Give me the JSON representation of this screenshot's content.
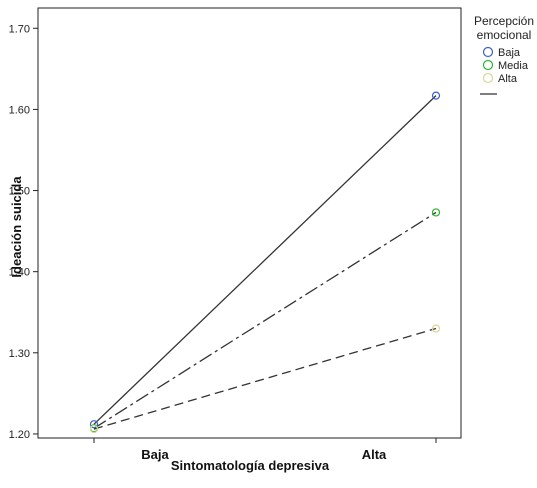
{
  "chart_data": {
    "type": "line",
    "xlabel": "Sintomatología depresiva",
    "ylabel": "Ideación suicida",
    "categories": [
      "Baja",
      "Alta"
    ],
    "ylim": [
      1.195,
      1.725
    ],
    "yticks": [
      "1.20",
      "1.30",
      "1.40",
      "1.50",
      "1.60",
      "1.70"
    ],
    "grid": false,
    "legend_title_lines": [
      "Percepción",
      "emocional"
    ],
    "legend_position": "top-right",
    "legend_items": [
      "Baja",
      "Media",
      "Alta"
    ],
    "legend_markers": [
      "circle",
      "circle",
      "circle",
      "line"
    ],
    "series": [
      {
        "name": "Baja",
        "values": [
          1.212,
          1.617
        ],
        "marker_color": "#3a5fcd",
        "dash": "solid"
      },
      {
        "name": "Media",
        "values": [
          1.207,
          1.473
        ],
        "marker_color": "#2db52d",
        "dash": "dashdot"
      },
      {
        "name": "Alta",
        "values": [
          1.206,
          1.33
        ],
        "marker_color": "#d8d89a",
        "dash": "dashed"
      }
    ],
    "line_color": "#333333"
  }
}
